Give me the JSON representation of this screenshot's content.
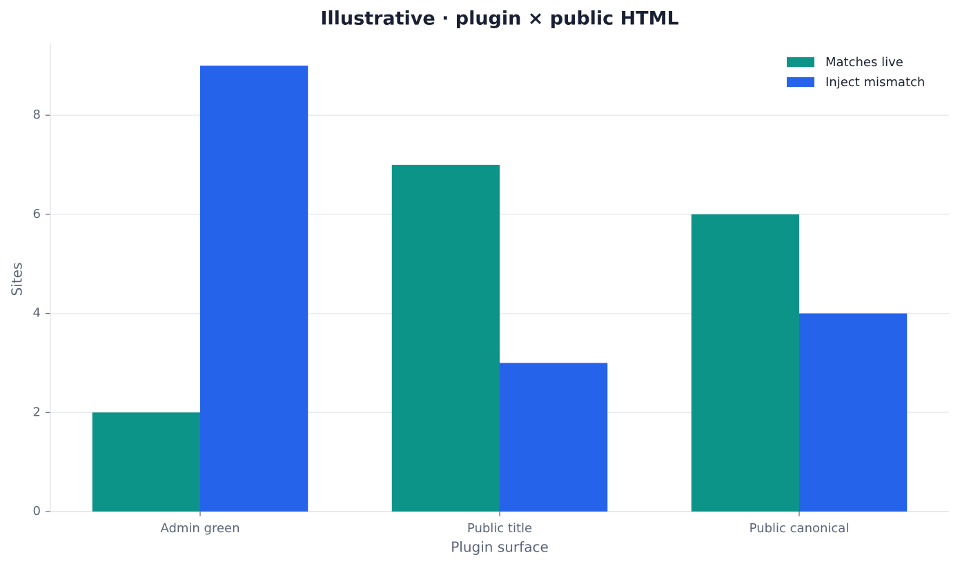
{
  "chart_data": {
    "type": "bar",
    "title": "Illustrative · plugin × public HTML",
    "x_label": "Plugin surface",
    "y_label": "Sites",
    "categories": [
      "Admin green",
      "Public title",
      "Public canonical"
    ],
    "series": [
      {
        "name": "Matches live",
        "color": "#0d9488",
        "values": [
          2,
          7,
          6
        ]
      },
      {
        "name": "Inject mismatch",
        "color": "#2563eb",
        "values": [
          9,
          3,
          4
        ]
      }
    ],
    "ylim": [
      0,
      9.45
    ],
    "yticks": [
      0,
      2,
      4,
      6,
      8
    ],
    "grid": true,
    "legend": "upper right"
  }
}
